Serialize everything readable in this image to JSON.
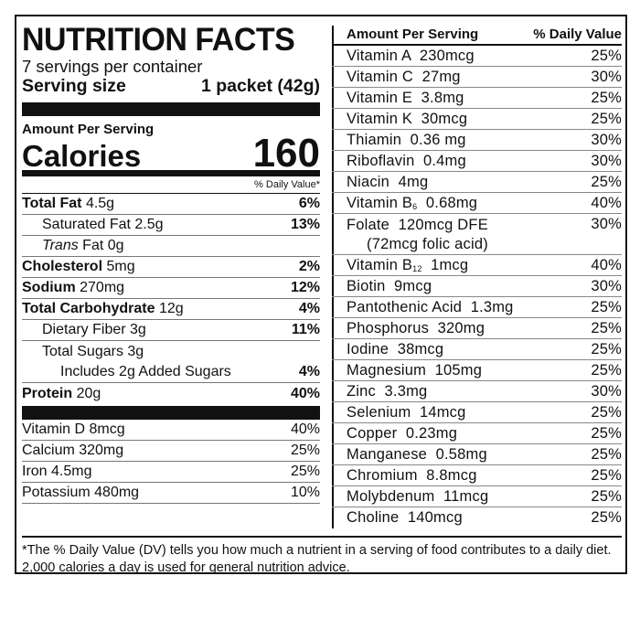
{
  "title": "NUTRITION FACTS",
  "servings_per_container": "7 servings per container",
  "serving_size_label": "Serving size",
  "serving_size_value": "1 packet (42g)",
  "amount_per_serving": "Amount Per Serving",
  "calories_label": "Calories",
  "calories_value": "160",
  "dv_header": "% Daily Value*",
  "nutrients": [
    {
      "name": "Total Fat",
      "amount": "4.5g",
      "dv": "6%"
    },
    {
      "name": "Saturated Fat",
      "amount": "2.5g",
      "dv": "13%"
    },
    {
      "name": "Trans",
      "amount": "Fat 0g",
      "dv": ""
    },
    {
      "name": "Cholesterol",
      "amount": "5mg",
      "dv": "2%"
    },
    {
      "name": "Sodium",
      "amount": "270mg",
      "dv": "12%"
    },
    {
      "name": "Total Carbohydrate",
      "amount": "12g",
      "dv": "4%"
    },
    {
      "name": "Dietary Fiber",
      "amount": "3g",
      "dv": "11%"
    },
    {
      "name": "Total Sugars",
      "amount": "3g",
      "dv": ""
    },
    {
      "name": "Includes 2g Added Sugars",
      "amount": "",
      "dv": "4%"
    },
    {
      "name": "Protein",
      "amount": "20g",
      "dv": "40%"
    }
  ],
  "vitamins_left": [
    {
      "name": "Vitamin D 8mcg",
      "dv": "40%"
    },
    {
      "name": "Calcium 320mg",
      "dv": "25%"
    },
    {
      "name": "Iron 4.5mg",
      "dv": "25%"
    },
    {
      "name": "Potassium 480mg",
      "dv": "10%"
    }
  ],
  "right_header": {
    "amount": "Amount Per Serving",
    "dv": "% Daily Value"
  },
  "vitamins_right": [
    {
      "name": "Vitamin A  230mcg",
      "dv": "25%"
    },
    {
      "name": "Vitamin C  27mg",
      "dv": "30%"
    },
    {
      "name": "Vitamin E  3.8mg",
      "dv": "25%"
    },
    {
      "name": "Vitamin K  30mcg",
      "dv": "25%"
    },
    {
      "name": "Thiamin  0.36 mg",
      "dv": "30%"
    },
    {
      "name": "Riboflavin  0.4mg",
      "dv": "30%"
    },
    {
      "name": "Niacin  4mg",
      "dv": "25%"
    },
    {
      "name": "Vitamin B",
      "sub": "6",
      "rest": "  0.68mg",
      "dv": "40%"
    },
    {
      "name": "Folate  120mcg DFE",
      "line2": "(72mcg folic acid)",
      "dv": "30%"
    },
    {
      "name": "Vitamin B",
      "sub": "12",
      "rest": "  1mcg",
      "dv": "40%"
    },
    {
      "name": "Biotin  9mcg",
      "dv": "30%"
    },
    {
      "name": "Pantothenic Acid  1.3mg",
      "dv": "25%"
    },
    {
      "name": "Phosphorus  320mg",
      "dv": "25%"
    },
    {
      "name": "Iodine  38mcg",
      "dv": "25%"
    },
    {
      "name": "Magnesium  105mg",
      "dv": "25%"
    },
    {
      "name": "Zinc  3.3mg",
      "dv": "30%"
    },
    {
      "name": "Selenium  14mcg",
      "dv": "25%"
    },
    {
      "name": "Copper  0.23mg",
      "dv": "25%"
    },
    {
      "name": "Manganese  0.58mg",
      "dv": "25%"
    },
    {
      "name": "Chromium  8.8mcg",
      "dv": "25%"
    },
    {
      "name": "Molybdenum  11mcg",
      "dv": "25%"
    },
    {
      "name": "Choline  140mcg",
      "dv": "25%"
    }
  ],
  "footnote": "*The % Daily Value (DV) tells you how much a nutrient in a serving of food contributes to a daily diet. 2,000 calories a day is used for general nutrition advice."
}
